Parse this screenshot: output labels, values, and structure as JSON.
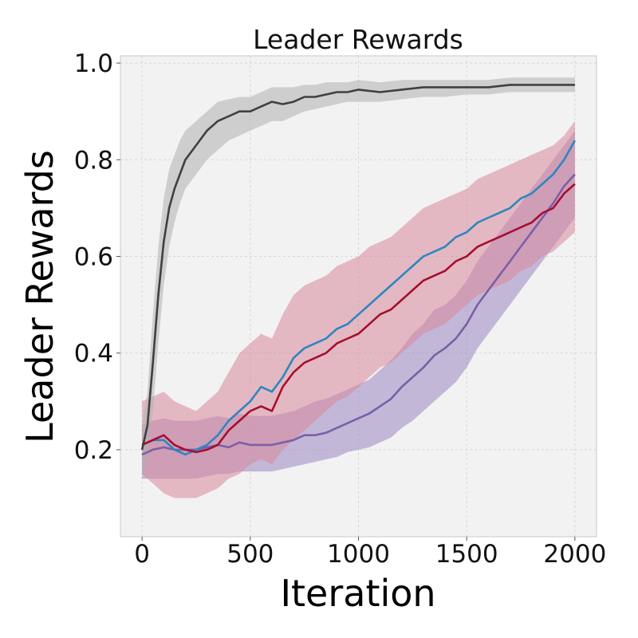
{
  "chart_data": {
    "type": "line",
    "title": "Leader Rewards",
    "xlabel": "Iteration",
    "ylabel": "Leader Rewards",
    "xlim": [
      -100,
      2100
    ],
    "ylim": [
      0.02,
      1.015
    ],
    "xticks": [
      0,
      500,
      1000,
      1500,
      2000
    ],
    "yticks": [
      0.2,
      0.4,
      0.6,
      0.8,
      1.0
    ],
    "xtick_labels": [
      "0",
      "500",
      "1000",
      "1500",
      "2000"
    ],
    "ytick_labels": [
      "0.2",
      "0.4",
      "0.6",
      "0.8",
      "1.0"
    ],
    "grid": true,
    "legend": "none",
    "background": "#f2f2f2",
    "series": [
      {
        "color": "#7b5fa8",
        "band_color": "#9c86c2",
        "x": [
          0,
          50,
          100,
          150,
          200,
          250,
          300,
          350,
          400,
          450,
          500,
          550,
          600,
          650,
          700,
          750,
          800,
          850,
          900,
          950,
          1000,
          1050,
          1100,
          1150,
          1200,
          1250,
          1300,
          1350,
          1400,
          1450,
          1500,
          1550,
          1600,
          1650,
          1700,
          1750,
          1800,
          1850,
          1900,
          1950,
          2000
        ],
        "y": [
          0.19,
          0.2,
          0.205,
          0.2,
          0.2,
          0.2,
          0.205,
          0.21,
          0.205,
          0.215,
          0.21,
          0.21,
          0.21,
          0.215,
          0.22,
          0.23,
          0.23,
          0.235,
          0.245,
          0.255,
          0.265,
          0.275,
          0.29,
          0.305,
          0.33,
          0.35,
          0.37,
          0.395,
          0.41,
          0.43,
          0.46,
          0.5,
          0.53,
          0.56,
          0.59,
          0.62,
          0.65,
          0.68,
          0.71,
          0.745,
          0.77
        ],
        "lower": [
          0.14,
          0.14,
          0.14,
          0.14,
          0.14,
          0.14,
          0.145,
          0.15,
          0.15,
          0.155,
          0.155,
          0.155,
          0.155,
          0.16,
          0.165,
          0.17,
          0.175,
          0.18,
          0.185,
          0.195,
          0.2,
          0.205,
          0.215,
          0.225,
          0.245,
          0.26,
          0.28,
          0.3,
          0.32,
          0.34,
          0.37,
          0.41,
          0.44,
          0.47,
          0.5,
          0.53,
          0.56,
          0.59,
          0.62,
          0.65,
          0.68
        ],
        "upper": [
          0.25,
          0.26,
          0.265,
          0.26,
          0.26,
          0.26,
          0.265,
          0.27,
          0.265,
          0.275,
          0.27,
          0.27,
          0.27,
          0.275,
          0.28,
          0.29,
          0.3,
          0.305,
          0.315,
          0.325,
          0.335,
          0.345,
          0.365,
          0.385,
          0.41,
          0.44,
          0.46,
          0.49,
          0.5,
          0.52,
          0.55,
          0.59,
          0.62,
          0.65,
          0.68,
          0.71,
          0.74,
          0.77,
          0.8,
          0.83,
          0.86
        ]
      },
      {
        "color": "#2e86c1",
        "band_color": "#a9cfe8",
        "x": [
          0,
          50,
          100,
          150,
          200,
          250,
          300,
          350,
          400,
          450,
          500,
          550,
          600,
          650,
          700,
          750,
          800,
          850,
          900,
          950,
          1000,
          1050,
          1100,
          1150,
          1200,
          1250,
          1300,
          1350,
          1400,
          1450,
          1500,
          1550,
          1600,
          1650,
          1700,
          1750,
          1800,
          1850,
          1900,
          1950,
          2000
        ],
        "y": [
          0.21,
          0.22,
          0.22,
          0.2,
          0.19,
          0.2,
          0.21,
          0.23,
          0.26,
          0.28,
          0.3,
          0.33,
          0.32,
          0.35,
          0.39,
          0.41,
          0.42,
          0.43,
          0.45,
          0.46,
          0.48,
          0.5,
          0.52,
          0.54,
          0.56,
          0.58,
          0.6,
          0.61,
          0.62,
          0.64,
          0.65,
          0.67,
          0.68,
          0.69,
          0.7,
          0.72,
          0.73,
          0.75,
          0.77,
          0.8,
          0.84
        ]
      },
      {
        "color": "#a50f2e",
        "band_color": "#d9899b",
        "x": [
          0,
          50,
          100,
          150,
          200,
          250,
          300,
          350,
          400,
          450,
          500,
          550,
          600,
          650,
          700,
          750,
          800,
          850,
          900,
          950,
          1000,
          1050,
          1100,
          1150,
          1200,
          1250,
          1300,
          1350,
          1400,
          1450,
          1500,
          1550,
          1600,
          1650,
          1700,
          1750,
          1800,
          1850,
          1900,
          1950,
          2000
        ],
        "y": [
          0.21,
          0.22,
          0.23,
          0.21,
          0.2,
          0.195,
          0.2,
          0.21,
          0.24,
          0.26,
          0.28,
          0.29,
          0.28,
          0.33,
          0.36,
          0.38,
          0.39,
          0.4,
          0.42,
          0.43,
          0.44,
          0.46,
          0.48,
          0.49,
          0.51,
          0.53,
          0.55,
          0.56,
          0.57,
          0.59,
          0.6,
          0.62,
          0.63,
          0.64,
          0.65,
          0.66,
          0.67,
          0.69,
          0.7,
          0.73,
          0.75
        ],
        "lower": [
          0.15,
          0.13,
          0.11,
          0.1,
          0.1,
          0.1,
          0.11,
          0.12,
          0.14,
          0.15,
          0.17,
          0.18,
          0.17,
          0.2,
          0.22,
          0.24,
          0.26,
          0.28,
          0.3,
          0.31,
          0.33,
          0.35,
          0.37,
          0.38,
          0.4,
          0.42,
          0.44,
          0.45,
          0.46,
          0.48,
          0.5,
          0.52,
          0.53,
          0.54,
          0.55,
          0.57,
          0.58,
          0.6,
          0.61,
          0.63,
          0.65
        ],
        "upper": [
          0.3,
          0.31,
          0.32,
          0.3,
          0.29,
          0.28,
          0.3,
          0.32,
          0.36,
          0.4,
          0.42,
          0.44,
          0.43,
          0.48,
          0.52,
          0.54,
          0.55,
          0.56,
          0.58,
          0.59,
          0.6,
          0.62,
          0.63,
          0.64,
          0.66,
          0.68,
          0.7,
          0.71,
          0.72,
          0.73,
          0.74,
          0.76,
          0.77,
          0.78,
          0.79,
          0.8,
          0.81,
          0.82,
          0.83,
          0.85,
          0.88
        ]
      },
      {
        "color": "#404040",
        "band_color": "#b0b0b0",
        "x": [
          0,
          25,
          50,
          75,
          100,
          125,
          150,
          175,
          200,
          250,
          300,
          350,
          400,
          450,
          500,
          550,
          600,
          650,
          700,
          750,
          800,
          850,
          900,
          950,
          1000,
          1100,
          1200,
          1300,
          1400,
          1500,
          1600,
          1700,
          1800,
          1900,
          2000
        ],
        "y": [
          0.2,
          0.25,
          0.38,
          0.52,
          0.63,
          0.7,
          0.74,
          0.77,
          0.8,
          0.83,
          0.86,
          0.88,
          0.89,
          0.9,
          0.9,
          0.91,
          0.92,
          0.915,
          0.92,
          0.93,
          0.93,
          0.935,
          0.94,
          0.94,
          0.945,
          0.94,
          0.945,
          0.95,
          0.95,
          0.95,
          0.95,
          0.955,
          0.955,
          0.955,
          0.955
        ],
        "lower": [
          0.15,
          0.18,
          0.28,
          0.42,
          0.54,
          0.62,
          0.67,
          0.71,
          0.74,
          0.77,
          0.8,
          0.82,
          0.84,
          0.85,
          0.86,
          0.87,
          0.88,
          0.88,
          0.89,
          0.9,
          0.905,
          0.91,
          0.915,
          0.92,
          0.92,
          0.92,
          0.925,
          0.93,
          0.93,
          0.935,
          0.935,
          0.94,
          0.94,
          0.94,
          0.94
        ],
        "upper": [
          0.25,
          0.32,
          0.48,
          0.62,
          0.72,
          0.78,
          0.81,
          0.84,
          0.86,
          0.88,
          0.9,
          0.92,
          0.925,
          0.93,
          0.93,
          0.94,
          0.95,
          0.95,
          0.95,
          0.955,
          0.955,
          0.96,
          0.96,
          0.96,
          0.965,
          0.96,
          0.965,
          0.965,
          0.965,
          0.965,
          0.965,
          0.97,
          0.97,
          0.97,
          0.97
        ]
      }
    ]
  }
}
